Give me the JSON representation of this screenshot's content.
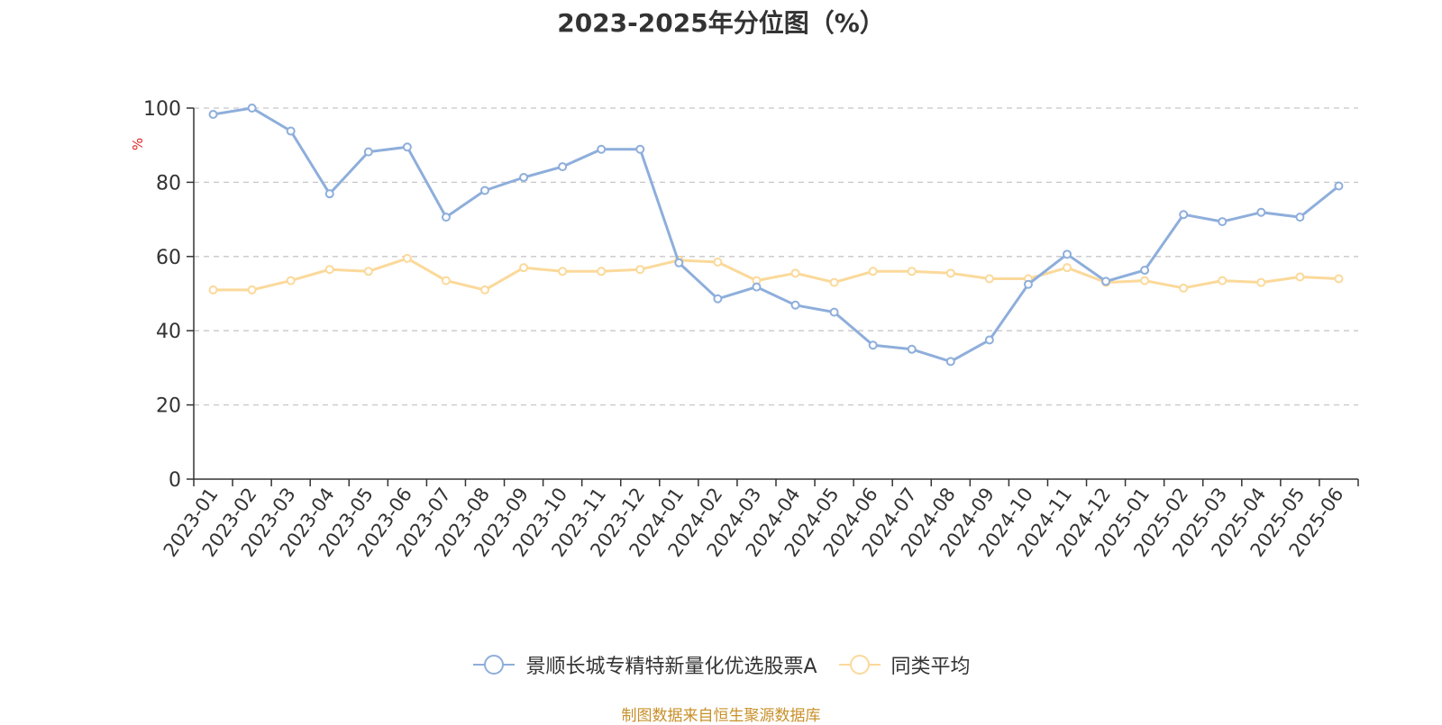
{
  "chart_data": {
    "type": "line",
    "title": "2023-2025年分位图（%）",
    "ylabel": "%",
    "xlabel": "",
    "ylim": [
      0,
      100
    ],
    "yticks": [
      0,
      20,
      40,
      60,
      80,
      100
    ],
    "grid": true,
    "legend_position": "bottom",
    "categories": [
      "2023-01",
      "2023-02",
      "2023-03",
      "2023-04",
      "2023-05",
      "2023-06",
      "2023-07",
      "2023-08",
      "2023-09",
      "2023-10",
      "2023-11",
      "2023-12",
      "2024-01",
      "2024-02",
      "2024-03",
      "2024-04",
      "2024-05",
      "2024-06",
      "2024-07",
      "2024-08",
      "2024-09",
      "2024-10",
      "2024-11",
      "2024-12",
      "2025-01",
      "2025-02",
      "2025-03",
      "2025-04",
      "2025-05",
      "2025-06"
    ],
    "series": [
      {
        "name": "景顺长城专精特新量化优选股票A",
        "color": "#8eaedb",
        "values": [
          98.3,
          100,
          93.8,
          76.9,
          88.2,
          89.5,
          70.6,
          77.8,
          81.3,
          84.2,
          88.9,
          88.9,
          58.3,
          48.6,
          51.8,
          46.9,
          45.0,
          36.1,
          35.0,
          31.7,
          37.5,
          52.5,
          60.6,
          53.3,
          56.3,
          71.3,
          69.4,
          71.9,
          70.6,
          79.0
        ]
      },
      {
        "name": "同类平均",
        "color": "#fbd99a",
        "values": [
          51.0,
          51.0,
          53.5,
          56.5,
          56.0,
          59.5,
          53.5,
          51.0,
          57.0,
          56.0,
          56.0,
          56.5,
          59.0,
          58.5,
          53.5,
          55.5,
          53.0,
          56.0,
          56.0,
          55.5,
          54.0,
          54.0,
          57.0,
          53.0,
          53.5,
          51.5,
          53.5,
          53.0,
          54.5,
          54.0
        ]
      }
    ]
  },
  "source_note": "制图数据来自恒生聚源数据库"
}
